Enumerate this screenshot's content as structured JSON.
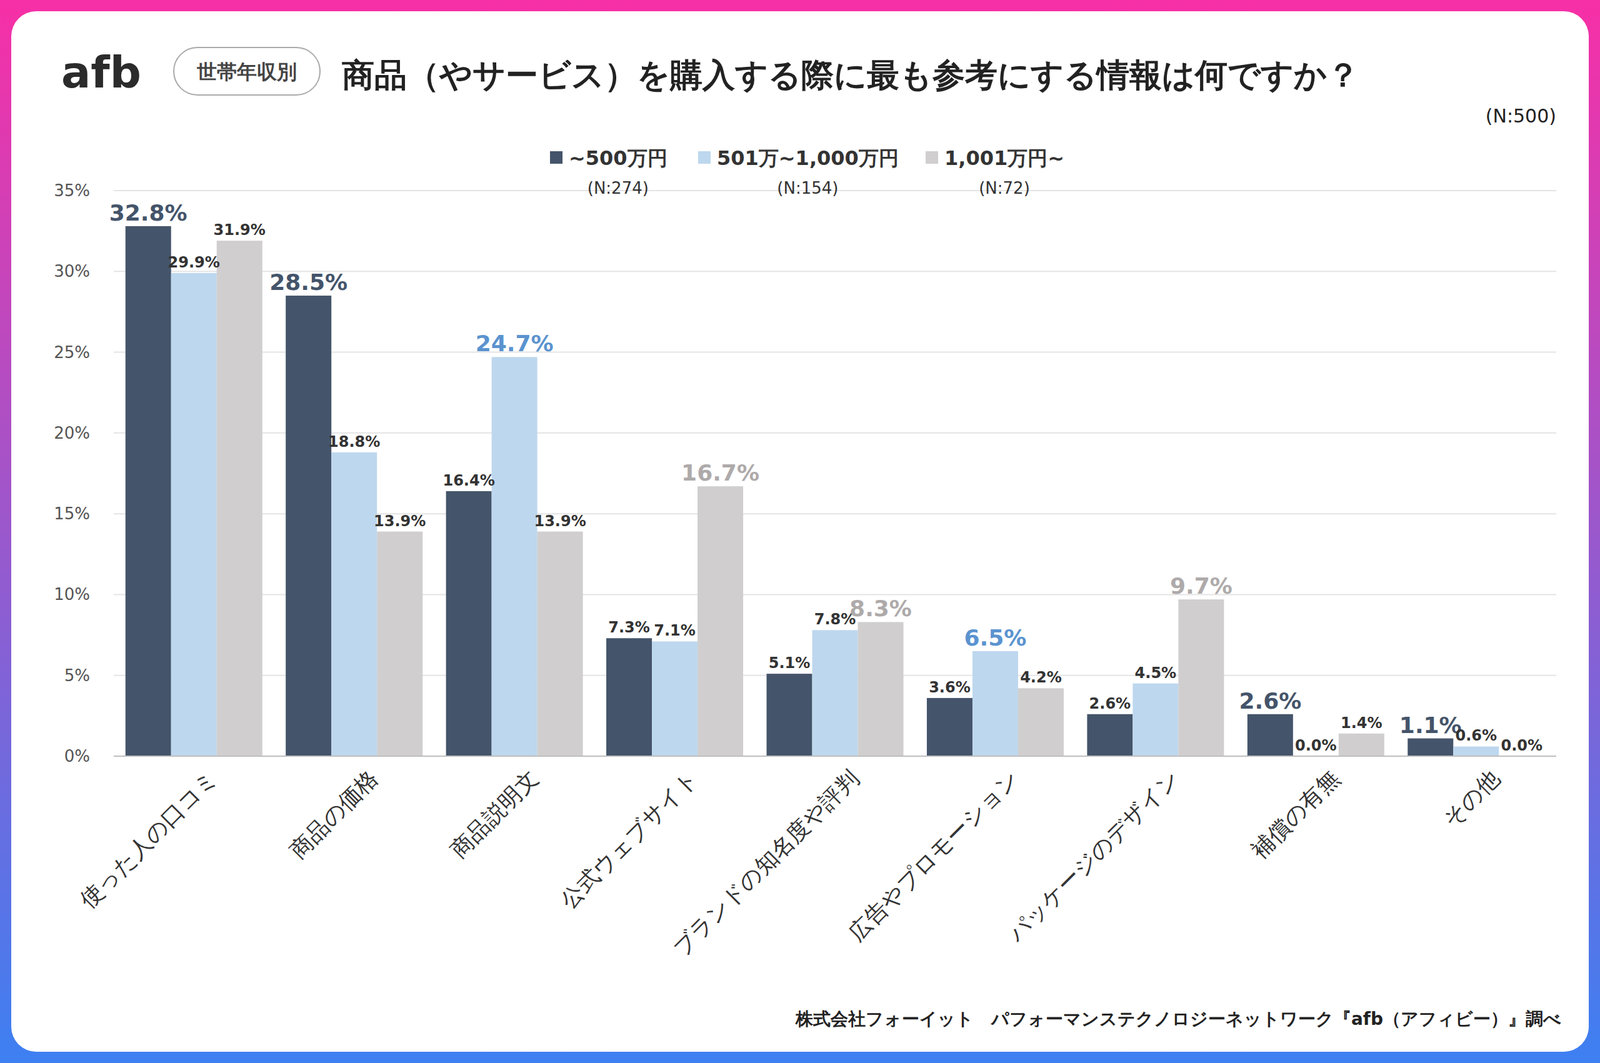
{
  "chart_data": {
    "type": "bar",
    "logo": "afb",
    "badge": "世帯年収別",
    "title": "商品（やサービス）を購入する際に最も参考にする情報は何ですか？",
    "sample_size": "(N:500)",
    "source": "株式会社フォーイット　パフォーマンステクノロジーネットワーク『afb（アフィビー）』調べ",
    "categories": [
      "使った人の口コミ",
      "商品の価格",
      "商品説明文",
      "公式ウェブサイト",
      "ブランドの知名度や評判",
      "広告やプロモーション",
      "パッケージのデザイン",
      "補償の有無",
      "その他"
    ],
    "series": [
      {
        "name": "~500万円",
        "sample_label": "(N:274)",
        "color": "#44546a",
        "values": [
          32.8,
          28.5,
          16.4,
          7.3,
          5.1,
          3.6,
          2.6,
          2.6,
          1.1
        ],
        "value_labels": [
          "32.8%",
          "28.5%",
          "16.4%",
          "7.3%",
          "5.1%",
          "3.6%",
          "2.6%",
          "2.6%",
          "1.1%"
        ]
      },
      {
        "name": "501万~1,000万円",
        "sample_label": "(N:154)",
        "color": "#bdd7ee",
        "values": [
          29.9,
          18.8,
          24.7,
          7.1,
          7.8,
          6.5,
          4.5,
          0.0,
          0.6
        ],
        "value_labels": [
          "29.9%",
          "18.8%",
          "24.7%",
          "7.1%",
          "7.8%",
          "6.5%",
          "4.5%",
          "0.0%",
          "0.6%"
        ]
      },
      {
        "name": "1,001万円~",
        "sample_label": "(N:72)",
        "color": "#d0cece",
        "values": [
          31.9,
          13.9,
          13.9,
          16.7,
          8.3,
          4.2,
          9.7,
          1.4,
          0.0
        ],
        "value_labels": [
          "31.9%",
          "13.9%",
          "13.9%",
          "16.7%",
          "8.3%",
          "4.2%",
          "9.7%",
          "1.4%",
          "0.0%"
        ]
      }
    ],
    "ylim": [
      0,
      35
    ],
    "yticks": [
      {
        "value": 0,
        "label": "0%"
      },
      {
        "value": 5,
        "label": "5%"
      },
      {
        "value": 10,
        "label": "10%"
      },
      {
        "value": 15,
        "label": "15%"
      },
      {
        "value": 20,
        "label": "20%"
      },
      {
        "value": 25,
        "label": "25%"
      },
      {
        "value": 30,
        "label": "30%"
      },
      {
        "value": 35,
        "label": "35%"
      }
    ],
    "grid": true,
    "legend": "top",
    "data_labels": true
  }
}
